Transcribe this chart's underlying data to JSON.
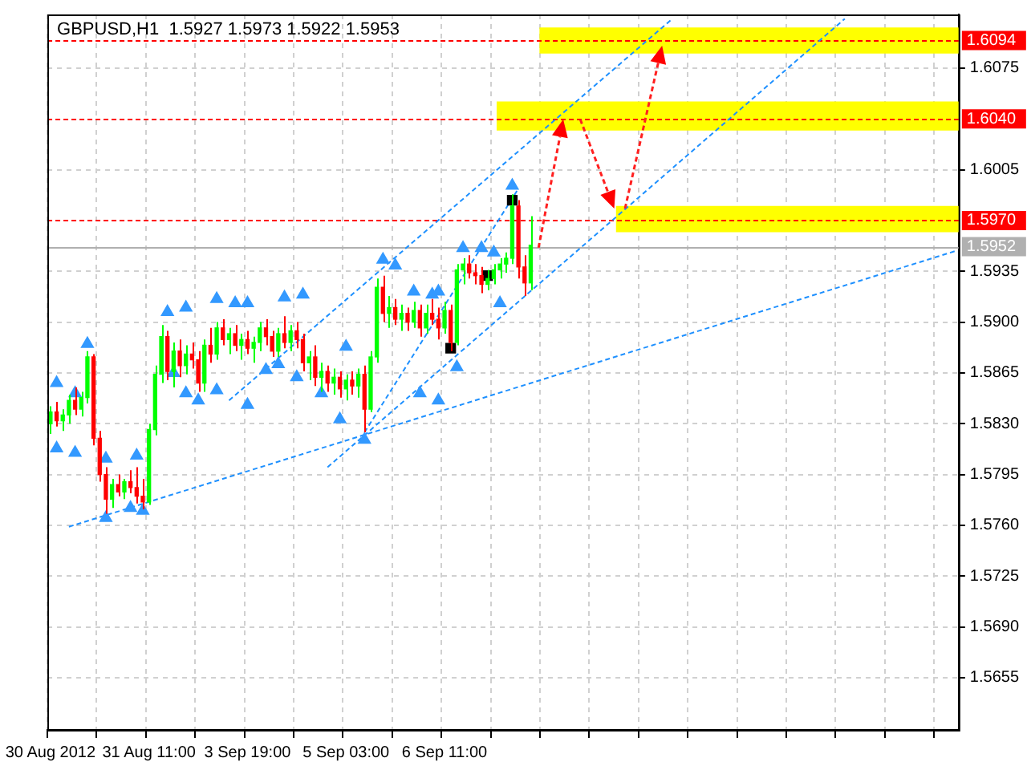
{
  "chart_data": {
    "type": "candlestick",
    "title": "GBPUSD,H1  1.5927 1.5973 1.5922 1.5953",
    "categories": [
      "30 Aug 2012",
      null,
      null,
      null,
      null,
      null,
      null,
      null,
      null,
      null,
      null,
      null,
      null,
      null,
      null,
      null,
      "31 Aug 11:00",
      null,
      null,
      null,
      null,
      null,
      null,
      null,
      null,
      null,
      null,
      null,
      null,
      null,
      null,
      null,
      "3 Sep 19:00",
      null,
      null,
      null,
      null,
      null,
      null,
      null,
      null,
      null,
      null,
      null,
      null,
      null,
      null,
      null,
      "5 Sep 03:00",
      null,
      null,
      null,
      null,
      null,
      null,
      null,
      null,
      null,
      null,
      null,
      null,
      null,
      null,
      null,
      "6 Sep 11:00",
      null,
      null,
      null,
      null,
      null,
      null,
      null,
      null,
      null,
      null,
      null,
      null,
      null,
      null,
      null,
      null,
      null,
      null,
      null,
      null,
      null,
      null,
      null,
      null,
      null,
      null,
      null,
      null,
      null,
      null,
      null,
      null,
      null,
      null,
      null,
      null,
      null,
      null,
      null,
      null,
      null,
      null,
      null,
      null,
      null,
      null,
      null,
      null,
      null,
      null,
      null,
      null,
      null,
      null,
      null,
      null,
      null,
      null,
      null,
      null,
      null,
      null,
      null,
      null,
      null,
      null,
      null,
      null,
      null,
      null,
      null,
      null,
      null,
      null,
      null,
      null,
      null,
      null,
      null,
      null,
      null,
      null,
      null
    ],
    "ohlc": [
      [
        1.583,
        1.5842,
        1.5823,
        1.5838
      ],
      [
        1.5838,
        1.5845,
        1.5828,
        1.5832
      ],
      [
        1.5832,
        1.584,
        1.5825,
        1.5836
      ],
      [
        1.5836,
        1.585,
        1.583,
        1.5846
      ],
      [
        1.5846,
        1.5855,
        1.5836,
        1.584
      ],
      [
        1.584,
        1.5852,
        1.5835,
        1.5848
      ],
      [
        1.5848,
        1.588,
        1.5844,
        1.5876
      ],
      [
        1.5876,
        1.5878,
        1.5815,
        1.582
      ],
      [
        1.582,
        1.5825,
        1.579,
        1.5795
      ],
      [
        1.5795,
        1.58,
        1.5768,
        1.5778
      ],
      [
        1.5778,
        1.5792,
        1.5772,
        1.5788
      ],
      [
        1.5788,
        1.5795,
        1.578,
        1.5783
      ],
      [
        1.5783,
        1.5792,
        1.5778,
        1.579
      ],
      [
        1.579,
        1.5798,
        1.5782,
        1.5786
      ],
      [
        1.5786,
        1.58,
        1.5775,
        1.578
      ],
      [
        1.578,
        1.5792,
        1.5771,
        1.5776
      ],
      [
        1.5776,
        1.583,
        1.5774,
        1.5826
      ],
      [
        1.5826,
        1.587,
        1.5822,
        1.5864
      ],
      [
        1.5864,
        1.5898,
        1.5858,
        1.589
      ],
      [
        1.589,
        1.5894,
        1.586,
        1.5866
      ],
      [
        1.5866,
        1.5886,
        1.5855,
        1.588
      ],
      [
        1.588,
        1.5888,
        1.5862,
        1.587
      ],
      [
        1.587,
        1.5884,
        1.5864,
        1.5878
      ],
      [
        1.5878,
        1.5886,
        1.5868,
        1.5874
      ],
      [
        1.5874,
        1.588,
        1.5852,
        1.5858
      ],
      [
        1.5858,
        1.5888,
        1.5852,
        1.5884
      ],
      [
        1.5884,
        1.5896,
        1.5872,
        1.5878
      ],
      [
        1.5878,
        1.59,
        1.5874,
        1.5896
      ],
      [
        1.5896,
        1.5902,
        1.5884,
        1.5888
      ],
      [
        1.5888,
        1.5896,
        1.5878,
        1.5892
      ],
      [
        1.5892,
        1.5898,
        1.588,
        1.5884
      ],
      [
        1.5884,
        1.5892,
        1.5874,
        1.5888
      ],
      [
        1.5888,
        1.5894,
        1.5878,
        1.5882
      ],
      [
        1.5882,
        1.589,
        1.5872,
        1.5886
      ],
      [
        1.5886,
        1.59,
        1.588,
        1.5896
      ],
      [
        1.5896,
        1.5902,
        1.5884,
        1.589
      ],
      [
        1.589,
        1.5894,
        1.5876,
        1.588
      ],
      [
        1.588,
        1.5896,
        1.5876,
        1.5892
      ],
      [
        1.5892,
        1.5904,
        1.5882,
        1.5886
      ],
      [
        1.5886,
        1.5898,
        1.588,
        1.5894
      ],
      [
        1.5894,
        1.59,
        1.5882,
        1.5888
      ],
      [
        1.5888,
        1.5892,
        1.5866,
        1.5872
      ],
      [
        1.5872,
        1.588,
        1.586,
        1.5876
      ],
      [
        1.5876,
        1.5884,
        1.5856,
        1.5862
      ],
      [
        1.5862,
        1.5872,
        1.5852,
        1.5866
      ],
      [
        1.5866,
        1.587,
        1.5852,
        1.5858
      ],
      [
        1.5858,
        1.5868,
        1.585,
        1.5862
      ],
      [
        1.5862,
        1.5866,
        1.5848,
        1.5854
      ],
      [
        1.5854,
        1.5864,
        1.5846,
        1.586
      ],
      [
        1.586,
        1.5866,
        1.585,
        1.5856
      ],
      [
        1.5856,
        1.5868,
        1.5848,
        1.5864
      ],
      [
        1.5864,
        1.587,
        1.5824,
        1.584
      ],
      [
        1.584,
        1.588,
        1.5838,
        1.5876
      ],
      [
        1.5876,
        1.593,
        1.5872,
        1.5924
      ],
      [
        1.5924,
        1.5932,
        1.59,
        1.5906
      ],
      [
        1.5906,
        1.5918,
        1.5896,
        1.591
      ],
      [
        1.591,
        1.5916,
        1.5898,
        1.5902
      ],
      [
        1.5902,
        1.5912,
        1.5894,
        1.5906
      ],
      [
        1.5906,
        1.591,
        1.5894,
        1.59
      ],
      [
        1.59,
        1.5914,
        1.5896,
        1.5908
      ],
      [
        1.5908,
        1.5912,
        1.589,
        1.5896
      ],
      [
        1.5896,
        1.5912,
        1.5892,
        1.5906
      ],
      [
        1.5906,
        1.5916,
        1.5898,
        1.5902
      ],
      [
        1.5902,
        1.591,
        1.5888,
        1.5896
      ],
      [
        1.5896,
        1.5914,
        1.5892,
        1.5908
      ],
      [
        1.5908,
        1.5912,
        1.588,
        1.5886
      ],
      [
        1.5886,
        1.594,
        1.5884,
        1.5936
      ],
      [
        1.5936,
        1.5944,
        1.5926,
        1.594
      ],
      [
        1.594,
        1.5946,
        1.593,
        1.5934
      ],
      [
        1.5934,
        1.594,
        1.5926,
        1.5932
      ],
      [
        1.5932,
        1.5938,
        1.592,
        1.5926
      ],
      [
        1.5926,
        1.5936,
        1.5922,
        1.593
      ],
      [
        1.593,
        1.594,
        1.5926,
        1.5936
      ],
      [
        1.5936,
        1.5944,
        1.593,
        1.594
      ],
      [
        1.594,
        1.5948,
        1.5934,
        1.5944
      ],
      [
        1.5944,
        1.5988,
        1.594,
        1.598
      ],
      [
        1.598,
        1.5984,
        1.593,
        1.5938
      ],
      [
        1.5938,
        1.5946,
        1.5918,
        1.5927
      ],
      [
        1.5927,
        1.5973,
        1.5922,
        1.5953
      ],
      null,
      null,
      null,
      null,
      null,
      null,
      null,
      null,
      null,
      null,
      null,
      null,
      null,
      null,
      null,
      null,
      null,
      null,
      null,
      null,
      null,
      null,
      null,
      null,
      null,
      null,
      null,
      null,
      null,
      null,
      null,
      null,
      null,
      null,
      null,
      null,
      null,
      null,
      null,
      null,
      null,
      null,
      null,
      null,
      null,
      null,
      null,
      null,
      null,
      null,
      null,
      null,
      null,
      null,
      null,
      null,
      null,
      null,
      null,
      null,
      null,
      null,
      null,
      null,
      null,
      null,
      null,
      null,
      null
    ],
    "colors": [
      "#00ff00",
      "#ff0000",
      "#00ff00",
      "#00ff00",
      "#ff0000",
      "#00ff00",
      "#00ff00",
      "#ff0000",
      "#ff0000",
      "#ff0000",
      "#00ff00",
      "#ff0000",
      "#00ff00",
      "#ff0000",
      "#ff0000",
      "#ff0000",
      "#00ff00",
      "#00ff00",
      "#00ff00",
      "#ff0000",
      "#00ff00",
      "#ff0000",
      "#00ff00",
      "#ff0000",
      "#ff0000",
      "#00ff00",
      "#ff0000",
      "#00ff00",
      "#ff0000",
      "#00ff00",
      "#ff0000",
      "#00ff00",
      "#ff0000",
      "#00ff00",
      "#00ff00",
      "#ff0000",
      "#ff0000",
      "#00ff00",
      "#ff0000",
      "#00ff00",
      "#ff0000",
      "#ff0000",
      "#00ff00",
      "#ff0000",
      "#00ff00",
      "#ff0000",
      "#00ff00",
      "#ff0000",
      "#00ff00",
      "#ff0000",
      "#00ff00",
      "#ff0000",
      "#00ff00",
      "#00ff00",
      "#ff0000",
      "#00ff00",
      "#ff0000",
      "#00ff00",
      "#ff0000",
      "#00ff00",
      "#ff0000",
      "#00ff00",
      "#ff0000",
      "#ff0000",
      "#00ff00",
      "#ff0000",
      "#00ff00",
      "#00ff00",
      "#ff0000",
      "#ff0000",
      "#ff0000",
      "#00ff00",
      "#00ff00",
      "#00ff00",
      "#00ff00",
      "#00ff00",
      "#ff0000",
      "#ff0000",
      "#00ff00",
      null,
      null,
      null,
      null,
      null,
      null,
      null,
      null,
      null,
      null,
      null,
      null,
      null,
      null,
      null,
      null,
      null,
      null,
      null,
      null,
      null,
      null,
      null,
      null,
      null,
      null,
      null,
      null,
      null,
      null,
      null,
      null,
      null,
      null,
      null,
      null,
      null,
      null,
      null,
      null,
      null,
      null,
      null,
      null,
      null,
      null,
      null,
      null,
      null,
      null,
      null,
      null,
      null,
      null,
      null,
      null,
      null,
      null,
      null,
      null,
      null,
      null,
      null,
      null,
      null,
      null,
      null,
      null,
      null
    ],
    "series": [
      {
        "type": "scatter",
        "color": "#3399ff",
        "marker": "triangle",
        "values": [
          null,
          1.5858,
          null,
          null,
          1.5851,
          null,
          1.5885,
          null,
          null,
          1.5806,
          null,
          null,
          null,
          null,
          1.5808,
          null,
          null,
          null,
          null,
          1.5907,
          null,
          null,
          1.591,
          null,
          null,
          null,
          null,
          1.5916,
          null,
          null,
          1.5913,
          null,
          1.5913,
          null,
          null,
          null,
          null,
          null,
          1.5917,
          null,
          null,
          1.5919,
          null,
          null,
          null,
          null,
          null,
          null,
          1.5883,
          null,
          null,
          null,
          null,
          null,
          1.5943,
          null,
          1.5939,
          null,
          null,
          1.5921,
          null,
          null,
          1.5919,
          1.5921,
          null,
          null,
          null,
          1.5951,
          null,
          null,
          1.5951,
          null,
          1.5948,
          null,
          null,
          1.5994,
          null,
          null,
          null,
          null,
          null,
          null,
          null,
          null,
          null,
          null,
          null,
          null,
          null,
          null,
          null,
          null,
          null,
          null,
          null,
          null,
          null,
          null,
          null,
          null,
          null,
          null,
          null,
          null,
          null,
          null,
          null,
          null,
          null,
          null,
          null,
          null,
          null,
          null,
          null,
          null,
          null,
          null,
          null,
          null,
          null,
          null,
          null,
          null,
          null,
          null,
          null,
          null,
          null,
          null,
          null,
          null,
          null,
          null,
          null,
          null,
          null,
          null,
          null,
          null,
          null,
          null,
          null,
          null,
          null,
          null,
          null,
          null
        ]
      },
      {
        "type": "scatter",
        "color": "#3399ff",
        "marker": "triangle",
        "values": [
          null,
          1.5813,
          null,
          null,
          1.581,
          null,
          null,
          null,
          null,
          1.5765,
          null,
          null,
          null,
          1.5772,
          null,
          1.577,
          null,
          null,
          null,
          null,
          1.5865,
          null,
          1.5851,
          null,
          1.5846,
          null,
          null,
          1.5853,
          null,
          null,
          null,
          null,
          1.5843,
          null,
          null,
          1.5867,
          null,
          1.5871,
          null,
          null,
          1.5862,
          null,
          null,
          null,
          1.5851,
          null,
          null,
          1.5833,
          null,
          null,
          null,
          1.5819,
          null,
          null,
          null,
          null,
          null,
          null,
          null,
          null,
          1.5851,
          null,
          null,
          1.5846,
          null,
          null,
          1.5869,
          null,
          null,
          null,
          null,
          null,
          null,
          1.5913,
          null,
          null,
          null,
          null,
          null,
          null,
          null,
          null,
          null,
          null,
          null,
          null,
          null,
          null,
          null,
          null,
          null,
          null,
          null,
          null,
          null,
          null,
          null,
          null,
          null,
          null,
          null,
          null,
          null,
          null,
          null,
          null,
          null,
          null,
          null,
          null,
          null,
          null,
          null,
          null,
          null,
          null,
          null,
          null,
          null,
          null,
          null,
          null,
          null,
          null,
          null,
          null,
          null,
          null,
          null,
          null,
          null,
          null,
          null,
          null,
          null,
          null,
          null,
          null,
          null,
          null,
          null,
          null,
          null,
          null,
          null,
          null,
          null,
          null
        ]
      },
      {
        "type": "scatter",
        "color": "#000000",
        "marker": "square",
        "values": [
          null,
          null,
          null,
          null,
          null,
          null,
          null,
          null,
          null,
          null,
          null,
          null,
          null,
          null,
          null,
          null,
          null,
          null,
          null,
          null,
          null,
          null,
          null,
          null,
          null,
          null,
          null,
          null,
          null,
          null,
          null,
          null,
          null,
          null,
          null,
          null,
          null,
          null,
          null,
          null,
          null,
          null,
          null,
          null,
          null,
          null,
          null,
          null,
          null,
          null,
          null,
          null,
          null,
          null,
          null,
          null,
          null,
          null,
          null,
          null,
          null,
          null,
          null,
          null,
          null,
          1.5882,
          null,
          null,
          null,
          null,
          null,
          1.5932,
          null,
          null,
          null,
          1.5984,
          null,
          null,
          null,
          null,
          null,
          null,
          null,
          null,
          null,
          null,
          null,
          null,
          null,
          null,
          null,
          null,
          null,
          null,
          null,
          null,
          null,
          null,
          null,
          null,
          null,
          null,
          null,
          null,
          null,
          null,
          null,
          null,
          null,
          null,
          null,
          null,
          null,
          null,
          null,
          null,
          null,
          null,
          null,
          null,
          null,
          null,
          null,
          null,
          null,
          null,
          null,
          null,
          null,
          null,
          null,
          null,
          null,
          null,
          null,
          null,
          null,
          null,
          null,
          null,
          null,
          null,
          null,
          null,
          null,
          null,
          null,
          null
        ]
      },
      {
        "type": "line",
        "color": "#1e90ff",
        "line_style": "dashed",
        "values": [
          null,
          null,
          null,
          1.5759,
          null,
          null,
          null,
          null,
          null,
          null,
          null,
          null,
          null,
          null,
          null,
          null,
          null,
          null,
          null,
          null,
          null,
          null,
          null,
          null,
          null,
          null,
          null,
          null,
          null,
          null,
          null,
          null,
          null,
          null,
          null,
          null,
          null,
          null,
          null,
          null,
          null,
          null,
          null,
          null,
          null,
          null,
          null,
          null,
          null,
          null,
          null,
          null,
          null,
          null,
          null,
          null,
          null,
          null,
          null,
          null,
          null,
          null,
          null,
          null,
          null,
          null,
          null,
          null,
          null,
          null,
          null,
          null,
          null,
          null,
          null,
          null,
          null,
          null,
          null,
          null,
          null,
          null,
          null,
          null,
          null,
          null,
          null,
          null,
          null,
          null,
          null,
          null,
          null,
          null,
          null,
          null,
          null,
          null,
          null,
          null,
          null,
          null,
          null,
          null,
          null,
          null,
          null,
          null,
          null,
          null,
          null,
          null,
          null,
          null,
          null,
          null,
          null,
          null,
          null,
          null,
          null,
          null,
          null,
          null,
          null,
          null,
          null,
          null,
          null,
          null,
          null,
          null,
          null,
          null,
          null,
          null,
          null,
          null,
          null,
          null,
          null,
          null,
          null,
          null,
          null,
          null,
          null,
          1.5949
        ]
      },
      {
        "type": "line",
        "color": "#1e90ff",
        "line_style": "dashed",
        "values": [
          null,
          null,
          null,
          null,
          null,
          null,
          null,
          null,
          null,
          null,
          null,
          null,
          null,
          null,
          null,
          null,
          null,
          null,
          null,
          null,
          null,
          null,
          null,
          null,
          null,
          null,
          null,
          null,
          null,
          null,
          null,
          null,
          null,
          null,
          null,
          null,
          null,
          null,
          null,
          null,
          null,
          null,
          null,
          null,
          null,
          1.58,
          null,
          null,
          null,
          null,
          null,
          null,
          null,
          null,
          null,
          null,
          null,
          null,
          null,
          null,
          null,
          null,
          null,
          null,
          null,
          null,
          null,
          null,
          null,
          null,
          null,
          null,
          null,
          null,
          null,
          null,
          null,
          null,
          null,
          null,
          null,
          null,
          null,
          null,
          null,
          null,
          null,
          null,
          null,
          null,
          null,
          null,
          null,
          null,
          null,
          null,
          null,
          null,
          null,
          null,
          null,
          null,
          null,
          null,
          null,
          null,
          null,
          null,
          null,
          null,
          null,
          null,
          null,
          null,
          null,
          null,
          null,
          null,
          null,
          null,
          null,
          null,
          null,
          null,
          null,
          null,
          null,
          null,
          null,
          1.6109,
          null,
          null,
          null,
          null,
          null,
          null,
          null,
          null,
          null,
          null,
          null,
          null,
          null,
          null,
          null,
          null,
          null,
          null
        ]
      },
      {
        "type": "line",
        "color": "#1e90ff",
        "line_style": "dashed",
        "values": [
          null,
          null,
          null,
          null,
          null,
          null,
          null,
          null,
          null,
          null,
          null,
          null,
          null,
          null,
          null,
          null,
          null,
          null,
          null,
          null,
          null,
          null,
          null,
          null,
          null,
          null,
          null,
          null,
          null,
          1.5846,
          null,
          null,
          null,
          null,
          null,
          null,
          null,
          null,
          null,
          null,
          null,
          null,
          null,
          null,
          null,
          null,
          null,
          null,
          null,
          null,
          null,
          null,
          null,
          null,
          null,
          null,
          null,
          null,
          null,
          null,
          null,
          null,
          null,
          null,
          null,
          null,
          null,
          null,
          null,
          null,
          null,
          null,
          null,
          null,
          null,
          null,
          null,
          null,
          null,
          null,
          null,
          null,
          null,
          null,
          null,
          null,
          null,
          null,
          null,
          null,
          null,
          null,
          null,
          null,
          null,
          null,
          null,
          null,
          null,
          null,
          null,
          1.6109,
          null,
          null,
          null,
          null,
          null,
          null,
          null,
          null,
          null,
          null,
          null,
          null,
          null,
          null,
          null,
          null,
          null,
          null,
          null,
          null,
          null,
          null,
          null,
          null,
          null,
          null,
          null,
          null,
          null,
          null,
          null,
          null,
          null,
          null,
          null,
          null,
          null,
          null,
          null,
          null,
          null,
          null,
          null,
          null,
          null,
          null
        ]
      },
      {
        "type": "line",
        "color": "#1e90ff",
        "line_style": "dashed",
        "values": [
          null,
          null,
          null,
          null,
          null,
          null,
          null,
          null,
          null,
          null,
          null,
          null,
          null,
          null,
          null,
          null,
          null,
          null,
          null,
          null,
          null,
          null,
          null,
          null,
          null,
          null,
          null,
          null,
          null,
          null,
          null,
          null,
          null,
          null,
          null,
          null,
          null,
          null,
          null,
          null,
          null,
          null,
          null,
          null,
          null,
          null,
          null,
          null,
          null,
          null,
          null,
          1.5824,
          null,
          null,
          null,
          null,
          null,
          null,
          null,
          null,
          null,
          null,
          null,
          null,
          null,
          null,
          null,
          null,
          null,
          null,
          null,
          null,
          null,
          null,
          null,
          null,
          1.5992,
          null,
          null,
          null,
          null,
          null,
          null,
          null,
          null,
          null,
          null,
          null,
          null,
          null,
          null,
          null,
          null,
          null,
          null,
          null,
          null,
          null,
          null,
          null,
          null,
          null,
          null,
          null,
          null,
          null,
          null,
          null,
          null,
          null,
          null,
          null,
          null,
          null,
          null,
          null,
          null,
          null,
          null,
          null,
          null,
          null,
          null,
          null,
          null,
          null,
          null,
          null,
          null,
          null,
          null,
          null,
          null,
          null,
          null,
          null,
          null,
          null,
          null,
          null,
          null,
          null,
          null,
          null,
          null,
          null,
          null,
          null
        ]
      }
    ],
    "ylim": [
      1.5619,
      1.6112
    ],
    "yticks": [
      {
        "value": 1.5655,
        "label": "1.5655"
      },
      {
        "value": 1.569,
        "label": "1.5690"
      },
      {
        "value": 1.5725,
        "label": "1.5725"
      },
      {
        "value": 1.576,
        "label": "1.5760"
      },
      {
        "value": 1.5795,
        "label": "1.5795"
      },
      {
        "value": 1.583,
        "label": "1.5830"
      },
      {
        "value": 1.5865,
        "label": "1.5865"
      },
      {
        "value": 1.59,
        "label": "1.5900"
      },
      {
        "value": 1.5935,
        "label": "1.5935"
      },
      {
        "value": 1.6005,
        "label": "1.6005"
      },
      {
        "value": 1.6075,
        "label": "1.6075"
      }
    ],
    "grid": true,
    "bands": [
      {
        "axis": "y",
        "from": 1.6085,
        "to": 1.6103,
        "color": "#ffff00"
      },
      {
        "axis": "y",
        "from": 1.6032,
        "to": 1.6052,
        "color": "#ffff00"
      },
      {
        "axis": "y",
        "from": 1.5962,
        "to": 1.598,
        "color": "#ffff00"
      }
    ],
    "ref_lines": [
      {
        "axis": "y",
        "value": 1.6094,
        "label": "1.6094",
        "color": "#ff0000",
        "line_style": "dashed"
      },
      {
        "axis": "y",
        "value": 1.604,
        "label": "1.6040",
        "color": "#ff0000",
        "line_style": "dashed"
      },
      {
        "axis": "y",
        "value": 1.597,
        "label": "1.5970",
        "color": "#ff0000",
        "line_style": "dashed"
      },
      {
        "axis": "y",
        "value": 1.5952,
        "label": "1.5952",
        "color": "#b0b0b0",
        "line_style": "solid"
      }
    ]
  }
}
